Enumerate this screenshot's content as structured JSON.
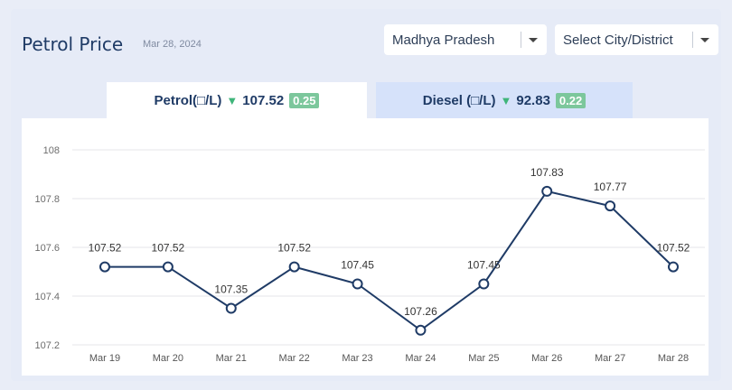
{
  "header": {
    "title": "Petrol Price",
    "date": "Mar 28, 2024"
  },
  "filters": {
    "state": "Madhya Pradesh",
    "city_placeholder": "Select City/District"
  },
  "tabs": {
    "petrol": {
      "label": "Petrol(□/L)",
      "price": "107.52",
      "change": "0.25"
    },
    "diesel": {
      "label": "Diesel (□/L)",
      "price": "92.83",
      "change": "0.22"
    }
  },
  "colors": {
    "line": "#1f3b66",
    "change_down": "#3fb57a",
    "badge": "#7cc79c"
  },
  "chart_data": {
    "type": "line",
    "categories": [
      "Mar 19",
      "Mar 20",
      "Mar 21",
      "Mar 22",
      "Mar 23",
      "Mar 24",
      "Mar 25",
      "Mar 26",
      "Mar 27",
      "Mar 28"
    ],
    "values": [
      107.52,
      107.52,
      107.35,
      107.52,
      107.45,
      107.26,
      107.45,
      107.83,
      107.77,
      107.52
    ],
    "data_labels": [
      "107.52",
      "107.52",
      "107.35",
      "107.52",
      "107.45",
      "107.26",
      "107.45",
      "107.83",
      "107.77",
      "107.52"
    ],
    "yticks": [
      "107.2",
      "107.4",
      "107.6",
      "107.8",
      "108"
    ],
    "ylim": [
      107.2,
      108
    ],
    "grid": true
  }
}
